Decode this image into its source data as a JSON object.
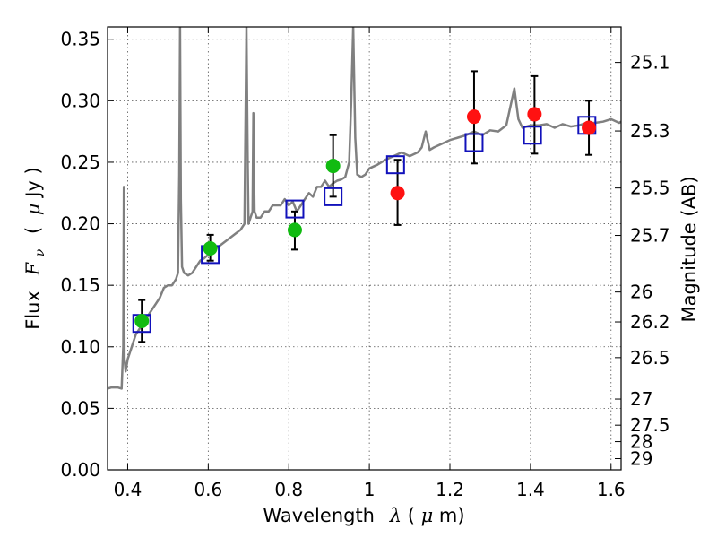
{
  "chart_data": {
    "type": "scatter",
    "title": "",
    "xlabel_prefix": "Wavelength",
    "xlabel_symbol": "λ",
    "xlabel_unit_open": " (",
    "xlabel_unit_mu": "μ",
    "xlabel_unit_rest": "m)",
    "ylabel_prefix": "Flux",
    "ylabel_symbol": "F",
    "ylabel_sub": "ν",
    "ylabel_unit_open": "(",
    "ylabel_unit_mu": "μ",
    "ylabel_unit_rest": "Jy )",
    "y2label": "Magnitude (AB)",
    "xlim": [
      0.35,
      1.625
    ],
    "ylim": [
      0.0,
      0.36
    ],
    "grid": true,
    "x_ticks": [
      {
        "value": 0.4,
        "label": "0.4"
      },
      {
        "value": 0.6,
        "label": "0.6"
      },
      {
        "value": 0.8,
        "label": "0.8"
      },
      {
        "value": 1.0,
        "label": "1"
      },
      {
        "value": 1.2,
        "label": "1.2"
      },
      {
        "value": 1.4,
        "label": "1.4"
      },
      {
        "value": 1.6,
        "label": "1.6"
      }
    ],
    "y_ticks": [
      {
        "value": 0.0,
        "label": "0.00"
      },
      {
        "value": 0.05,
        "label": "0.05"
      },
      {
        "value": 0.1,
        "label": "0.10"
      },
      {
        "value": 0.15,
        "label": "0.15"
      },
      {
        "value": 0.2,
        "label": "0.20"
      },
      {
        "value": 0.25,
        "label": "0.25"
      },
      {
        "value": 0.3,
        "label": "0.30"
      },
      {
        "value": 0.35,
        "label": "0.35"
      }
    ],
    "mag_ticks": [
      {
        "mag": 25.1,
        "label": "25.1"
      },
      {
        "mag": 25.3,
        "label": "25.3"
      },
      {
        "mag": 25.5,
        "label": "25.5"
      },
      {
        "mag": 25.7,
        "label": "25.7"
      },
      {
        "mag": 26.0,
        "label": "26"
      },
      {
        "mag": 26.2,
        "label": "26.2"
      },
      {
        "mag": 26.5,
        "label": "26.5"
      },
      {
        "mag": 27.0,
        "label": "27"
      },
      {
        "mag": 27.5,
        "label": "27.5"
      },
      {
        "mag": 28.0,
        "label": "28"
      },
      {
        "mag": 29.0,
        "label": "29"
      }
    ],
    "colors": {
      "model": "#808080",
      "green": "#11bb11",
      "red": "#ff1111",
      "square": "#1111bb",
      "error": "#000000",
      "grid": "#555555"
    },
    "model_spectrum": {
      "name": "model SED",
      "x": [
        0.35,
        0.36,
        0.375,
        0.385,
        0.389,
        0.3905,
        0.392,
        0.395,
        0.4,
        0.41,
        0.42,
        0.43,
        0.44,
        0.45,
        0.46,
        0.47,
        0.48,
        0.49,
        0.5,
        0.51,
        0.52,
        0.525,
        0.528,
        0.53,
        0.532,
        0.535,
        0.54,
        0.55,
        0.56,
        0.57,
        0.58,
        0.59,
        0.6,
        0.62,
        0.64,
        0.66,
        0.68,
        0.69,
        0.695,
        0.698,
        0.7,
        0.705,
        0.71,
        0.712,
        0.715,
        0.72,
        0.73,
        0.74,
        0.75,
        0.76,
        0.77,
        0.78,
        0.79,
        0.8,
        0.81,
        0.82,
        0.83,
        0.84,
        0.85,
        0.86,
        0.87,
        0.88,
        0.89,
        0.9,
        0.91,
        0.92,
        0.93,
        0.94,
        0.95,
        0.955,
        0.96,
        0.965,
        0.97,
        0.98,
        0.99,
        1.0,
        1.02,
        1.04,
        1.06,
        1.08,
        1.1,
        1.12,
        1.13,
        1.14,
        1.15,
        1.16,
        1.18,
        1.2,
        1.22,
        1.24,
        1.26,
        1.28,
        1.3,
        1.32,
        1.34,
        1.35,
        1.36,
        1.37,
        1.38,
        1.4,
        1.42,
        1.44,
        1.46,
        1.48,
        1.5,
        1.52,
        1.54,
        1.56,
        1.58,
        1.6,
        1.62,
        1.625
      ],
      "y": [
        0.066,
        0.067,
        0.067,
        0.066,
        0.1,
        0.23,
        0.09,
        0.08,
        0.09,
        0.1,
        0.11,
        0.115,
        0.12,
        0.125,
        0.13,
        0.135,
        0.14,
        0.148,
        0.15,
        0.15,
        0.155,
        0.16,
        0.24,
        0.36,
        0.22,
        0.165,
        0.16,
        0.158,
        0.16,
        0.165,
        0.17,
        0.172,
        0.175,
        0.18,
        0.185,
        0.19,
        0.195,
        0.2,
        0.36,
        0.25,
        0.2,
        0.205,
        0.21,
        0.29,
        0.21,
        0.205,
        0.205,
        0.21,
        0.21,
        0.215,
        0.215,
        0.215,
        0.22,
        0.215,
        0.218,
        0.21,
        0.215,
        0.22,
        0.225,
        0.222,
        0.23,
        0.23,
        0.235,
        0.23,
        0.233,
        0.235,
        0.236,
        0.238,
        0.25,
        0.3,
        0.36,
        0.27,
        0.24,
        0.238,
        0.24,
        0.245,
        0.248,
        0.252,
        0.255,
        0.258,
        0.255,
        0.258,
        0.262,
        0.275,
        0.26,
        0.262,
        0.265,
        0.268,
        0.27,
        0.272,
        0.275,
        0.272,
        0.276,
        0.275,
        0.28,
        0.295,
        0.31,
        0.285,
        0.278,
        0.28,
        0.28,
        0.281,
        0.278,
        0.281,
        0.279,
        0.28,
        0.282,
        0.282,
        0.283,
        0.285,
        0.282,
        0.283
      ]
    },
    "series": [
      {
        "name": "green-points",
        "marker": "circle",
        "x": [
          0.435,
          0.605,
          0.815,
          0.91
        ],
        "y": [
          0.121,
          0.18,
          0.195,
          0.247
        ],
        "yerr_low": [
          0.104,
          0.17,
          0.179,
          0.222
        ],
        "yerr_high": [
          0.138,
          0.191,
          0.21,
          0.272
        ]
      },
      {
        "name": "red-points",
        "marker": "circle",
        "x": [
          1.07,
          1.26,
          1.41,
          1.545
        ],
        "y": [
          0.225,
          0.287,
          0.289,
          0.278
        ],
        "yerr_low": [
          0.199,
          0.249,
          0.257,
          0.256
        ],
        "yerr_high": [
          0.252,
          0.324,
          0.32,
          0.3
        ]
      },
      {
        "name": "model-squares",
        "marker": "square",
        "x": [
          0.435,
          0.605,
          0.815,
          0.91,
          1.065,
          1.26,
          1.405,
          1.54
        ],
        "y": [
          0.119,
          0.175,
          0.212,
          0.222,
          0.248,
          0.266,
          0.272,
          0.28
        ]
      }
    ]
  }
}
